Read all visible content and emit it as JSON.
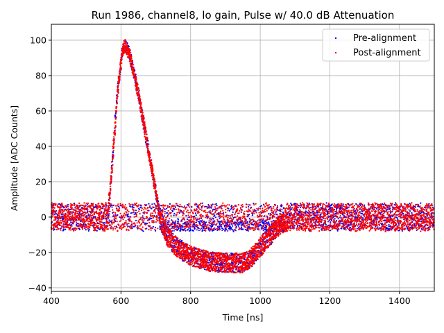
{
  "chart_data": {
    "type": "scatter",
    "title": "Run 1986, channel8, lo gain, Pulse w/ 40.0 dB Attenuation",
    "xlabel": "Time [ns]",
    "ylabel": "Amplitude [ADC Counts]",
    "xlim": [
      400,
      1500
    ],
    "ylim": [
      -42,
      109
    ],
    "xticks": [
      400,
      600,
      800,
      1000,
      1200,
      1400
    ],
    "yticks": [
      -40,
      -20,
      0,
      20,
      40,
      60,
      80,
      100
    ],
    "grid": true,
    "legend_position": "top-right",
    "series": [
      {
        "name": "Pre-alignment",
        "color": "#0000ff",
        "marker": "dot",
        "description_points": {
          "baseline_noise_range": [
            -8,
            8
          ],
          "pulse_rise_start_x": 565,
          "pulse_peak": {
            "x": 612,
            "y": 101
          },
          "zero_crossing_x": 712,
          "undershoot_min": {
            "x": 930,
            "y": -34
          },
          "recovery_x": 1080
        }
      },
      {
        "name": "Post-alignment",
        "color": "#ff0000",
        "marker": "dot",
        "description_points": {
          "baseline_noise_range": [
            -8,
            8
          ],
          "pulse_rise_start_x": 565,
          "pulse_peak": {
            "x": 612,
            "y": 101
          },
          "zero_crossing_x": 712,
          "undershoot_min": {
            "x": 930,
            "y": -34
          },
          "recovery_x": 1080
        }
      }
    ],
    "curve_profile": [
      [
        400,
        0
      ],
      [
        550,
        0
      ],
      [
        562,
        0
      ],
      [
        575,
        30
      ],
      [
        590,
        70
      ],
      [
        605,
        95
      ],
      [
        612,
        97
      ],
      [
        625,
        92
      ],
      [
        650,
        70
      ],
      [
        675,
        42
      ],
      [
        695,
        20
      ],
      [
        712,
        0
      ],
      [
        730,
        -10
      ],
      [
        760,
        -17
      ],
      [
        800,
        -22
      ],
      [
        850,
        -25
      ],
      [
        900,
        -26
      ],
      [
        950,
        -26
      ],
      [
        980,
        -22
      ],
      [
        1000,
        -17
      ],
      [
        1030,
        -10
      ],
      [
        1060,
        -4
      ],
      [
        1100,
        -1
      ],
      [
        1200,
        0
      ],
      [
        1500,
        0
      ]
    ]
  }
}
